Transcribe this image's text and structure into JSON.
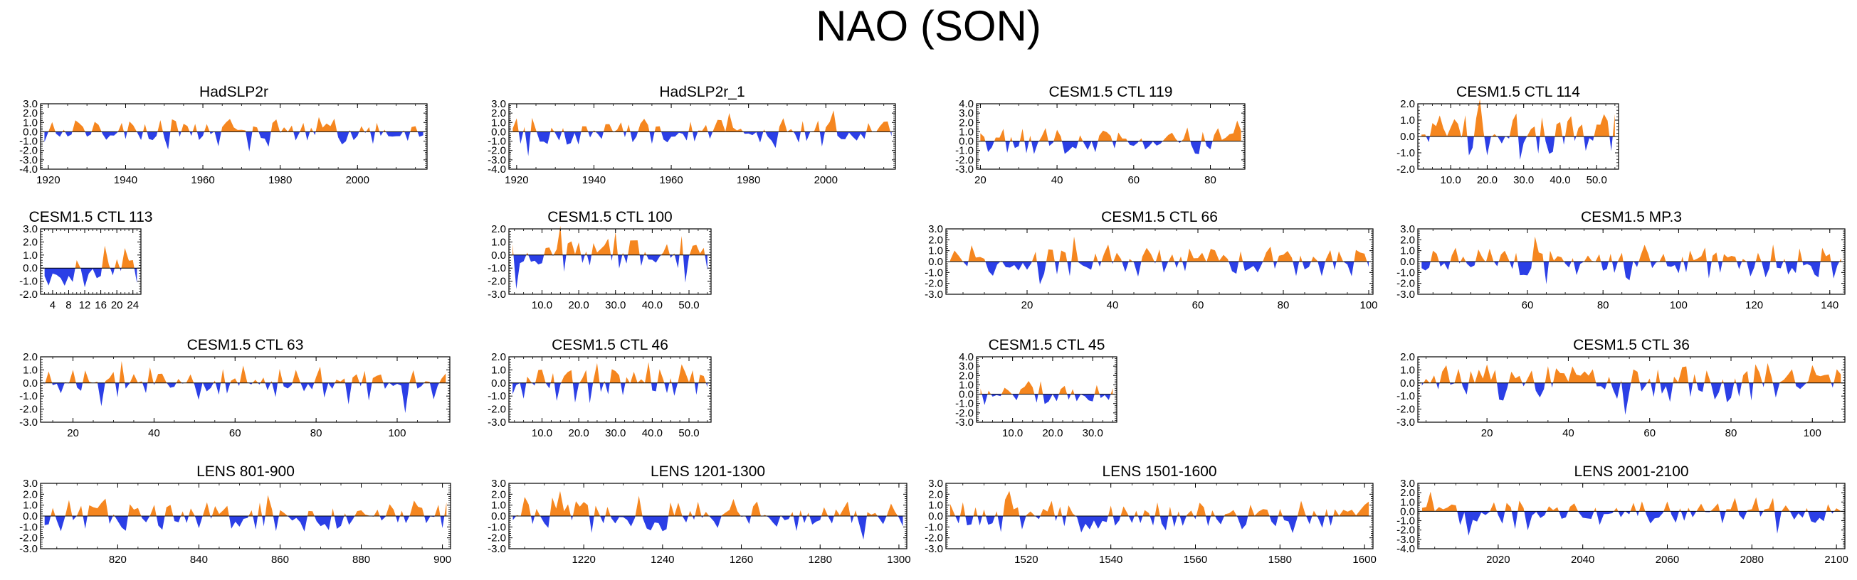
{
  "figure": {
    "title": "NAO (SON)"
  },
  "colors": {
    "positive": "#f5861f",
    "negative": "#2b3fe6",
    "frame": "#000000"
  },
  "chart_data": [
    {
      "type": "area",
      "title": "HadSLP2r",
      "xlim": [
        1918,
        2018
      ],
      "ylim": [
        -4,
        3
      ],
      "xticks": [
        1920,
        1940,
        1960,
        1980,
        2000
      ],
      "xticklabels": [
        "1920",
        "1940",
        "1960",
        "1980",
        "2000"
      ],
      "yticks": [
        -4,
        -3,
        -2,
        -1,
        0,
        1,
        2,
        3
      ],
      "yticklabels": [
        "-4.0",
        "-3.0",
        "-2.0",
        "-1.0",
        "0.0",
        "1.0",
        "2.0",
        "3.0"
      ],
      "seed": 11
    },
    {
      "type": "area",
      "title": "HadSLP2r_1",
      "xlim": [
        1918,
        2018
      ],
      "ylim": [
        -4,
        3
      ],
      "xticks": [
        1920,
        1940,
        1960,
        1980,
        2000
      ],
      "xticklabels": [
        "1920",
        "1940",
        "1960",
        "1980",
        "2000"
      ],
      "yticks": [
        -4,
        -3,
        -2,
        -1,
        0,
        1,
        2,
        3
      ],
      "yticklabels": [
        "-4.0",
        "-3.0",
        "-2.0",
        "-1.0",
        "0.0",
        "1.0",
        "2.0",
        "3.0"
      ],
      "seed": 12
    },
    {
      "type": "area",
      "title": "CESM1.5 CTL 119",
      "xlim": [
        19,
        89
      ],
      "ylim": [
        -3,
        4
      ],
      "xticks": [
        20,
        40,
        60,
        80
      ],
      "xticklabels": [
        "20",
        "40",
        "60",
        "80"
      ],
      "yticks": [
        -3,
        -2,
        -1,
        0,
        1,
        2,
        3,
        4
      ],
      "yticklabels": [
        "-3.0",
        "-2.0",
        "-1.0",
        "0.0",
        "1.0",
        "2.0",
        "3.0",
        "4.0"
      ],
      "seed": 13
    },
    {
      "type": "area",
      "title": "CESM1.5 CTL 114",
      "xlim": [
        1,
        56
      ],
      "ylim": [
        -2,
        2
      ],
      "xticks": [
        10,
        20,
        30,
        40,
        50
      ],
      "xticklabels": [
        "10.0",
        "20.0",
        "30.0",
        "40.0",
        "50.0"
      ],
      "yticks": [
        -2,
        -1,
        0,
        1,
        2
      ],
      "yticklabels": [
        "-2.0",
        "-1.0",
        "0.0",
        "1.0",
        "2.0"
      ],
      "seed": 14
    },
    {
      "type": "area",
      "title": "CESM1.5 CTL 113",
      "xlim": [
        1,
        26
      ],
      "ylim": [
        -2,
        3
      ],
      "xticks": [
        4,
        8,
        12,
        16,
        20,
        24
      ],
      "xticklabels": [
        "4",
        "8",
        "12",
        "16",
        "20",
        "24"
      ],
      "yticks": [
        -2,
        -1,
        0,
        1,
        2,
        3
      ],
      "yticklabels": [
        "-2.0",
        "-1.0",
        "0.0",
        "1.0",
        "2.0",
        "3.0"
      ],
      "seed": 15
    },
    {
      "type": "area",
      "title": "CESM1.5 CTL 100",
      "xlim": [
        1,
        56
      ],
      "ylim": [
        -3,
        2
      ],
      "xticks": [
        10,
        20,
        30,
        40,
        50
      ],
      "xticklabels": [
        "10.0",
        "20.0",
        "30.0",
        "40.0",
        "50.0"
      ],
      "yticks": [
        -3,
        -2,
        -1,
        0,
        1,
        2
      ],
      "yticklabels": [
        "-3.0",
        "-2.0",
        "-1.0",
        "0.0",
        "1.0",
        "2.0"
      ],
      "seed": 16
    },
    {
      "type": "area",
      "title": "CESM1.5 CTL 66",
      "xlim": [
        1,
        101
      ],
      "ylim": [
        -3,
        3
      ],
      "xticks": [
        20,
        40,
        60,
        80,
        100
      ],
      "xticklabels": [
        "20",
        "40",
        "60",
        "80",
        "100"
      ],
      "yticks": [
        -3,
        -2,
        -1,
        0,
        1,
        2,
        3
      ],
      "yticklabels": [
        "-3.0",
        "-2.0",
        "-1.0",
        "0.0",
        "1.0",
        "2.0",
        "3.0"
      ],
      "seed": 17
    },
    {
      "type": "area",
      "title": "CESM1.5 MP.3",
      "xlim": [
        31,
        144
      ],
      "ylim": [
        -3,
        3
      ],
      "xticks": [
        60,
        80,
        100,
        120,
        140
      ],
      "xticklabels": [
        "60",
        "80",
        "100",
        "120",
        "140"
      ],
      "yticks": [
        -3,
        -2,
        -1,
        0,
        1,
        2,
        3
      ],
      "yticklabels": [
        "-3.0",
        "-2.0",
        "-1.0",
        "0.0",
        "1.0",
        "2.0",
        "3.0"
      ],
      "seed": 18
    },
    {
      "type": "area",
      "title": "CESM1.5 CTL 63",
      "xlim": [
        12,
        113
      ],
      "ylim": [
        -3,
        2
      ],
      "xticks": [
        20,
        40,
        60,
        80,
        100
      ],
      "xticklabels": [
        "20",
        "40",
        "60",
        "80",
        "100"
      ],
      "yticks": [
        -3,
        -2,
        -1,
        0,
        1,
        2
      ],
      "yticklabels": [
        "-3.0",
        "-2.0",
        "-1.0",
        "0.0",
        "1.0",
        "2.0"
      ],
      "seed": 19
    },
    {
      "type": "area",
      "title": "CESM1.5 CTL 46",
      "xlim": [
        1,
        56
      ],
      "ylim": [
        -3,
        2
      ],
      "xticks": [
        10,
        20,
        30,
        40,
        50
      ],
      "xticklabels": [
        "10.0",
        "20.0",
        "30.0",
        "40.0",
        "50.0"
      ],
      "yticks": [
        -3,
        -2,
        -1,
        0,
        1,
        2
      ],
      "yticklabels": [
        "-3.0",
        "-2.0",
        "-1.0",
        "0.0",
        "1.0",
        "2.0"
      ],
      "seed": 20
    },
    {
      "type": "area",
      "title": "CESM1.5 CTL 45",
      "xlim": [
        1,
        36
      ],
      "ylim": [
        -3,
        4
      ],
      "xticks": [
        10,
        20,
        30
      ],
      "xticklabels": [
        "10.0",
        "20.0",
        "30.0"
      ],
      "yticks": [
        -3,
        -2,
        -1,
        0,
        1,
        2,
        3,
        4
      ],
      "yticklabels": [
        "-3.0",
        "-2.0",
        "-1.0",
        "0.0",
        "1.0",
        "2.0",
        "3.0",
        "4.0"
      ],
      "seed": 21
    },
    {
      "type": "area",
      "title": "CESM1.5 CTL 36",
      "xlim": [
        3,
        108
      ],
      "ylim": [
        -3,
        2
      ],
      "xticks": [
        20,
        40,
        60,
        80,
        100
      ],
      "xticklabels": [
        "20",
        "40",
        "60",
        "80",
        "100"
      ],
      "yticks": [
        -3,
        -2,
        -1,
        0,
        1,
        2
      ],
      "yticklabels": [
        "-3.0",
        "-2.0",
        "-1.0",
        "0.0",
        "1.0",
        "2.0"
      ],
      "seed": 22
    },
    {
      "type": "area",
      "title": "LENS 801-900",
      "xlim": [
        801,
        902
      ],
      "ylim": [
        -3,
        3
      ],
      "xticks": [
        820,
        840,
        860,
        880,
        900
      ],
      "xticklabels": [
        "820",
        "840",
        "860",
        "880",
        "900"
      ],
      "yticks": [
        -3,
        -2,
        -1,
        0,
        1,
        2,
        3
      ],
      "yticklabels": [
        "-3.0",
        "-2.0",
        "-1.0",
        "0.0",
        "1.0",
        "2.0",
        "3.0"
      ],
      "seed": 23
    },
    {
      "type": "area",
      "title": "LENS 1201-1300",
      "xlim": [
        1201,
        1302
      ],
      "ylim": [
        -3,
        3
      ],
      "xticks": [
        1220,
        1240,
        1260,
        1280,
        1300
      ],
      "xticklabels": [
        "1220",
        "1240",
        "1260",
        "1280",
        "1300"
      ],
      "yticks": [
        -3,
        -2,
        -1,
        0,
        1,
        2,
        3
      ],
      "yticklabels": [
        "-3.0",
        "-2.0",
        "-1.0",
        "0.0",
        "1.0",
        "2.0",
        "3.0"
      ],
      "seed": 24
    },
    {
      "type": "area",
      "title": "LENS 1501-1600",
      "xlim": [
        1501,
        1602
      ],
      "ylim": [
        -3,
        3
      ],
      "xticks": [
        1520,
        1540,
        1560,
        1580,
        1600
      ],
      "xticklabels": [
        "1520",
        "1540",
        "1560",
        "1580",
        "1600"
      ],
      "yticks": [
        -3,
        -2,
        -1,
        0,
        1,
        2,
        3
      ],
      "yticklabels": [
        "-3.0",
        "-2.0",
        "-1.0",
        "0.0",
        "1.0",
        "2.0",
        "3.0"
      ],
      "seed": 25
    },
    {
      "type": "area",
      "title": "LENS 2001-2100",
      "xlim": [
        2001,
        2102
      ],
      "ylim": [
        -4,
        3
      ],
      "xticks": [
        2020,
        2040,
        2060,
        2080,
        2100
      ],
      "xticklabels": [
        "2020",
        "2040",
        "2060",
        "2080",
        "2100"
      ],
      "yticks": [
        -4,
        -3,
        -2,
        -1,
        0,
        1,
        2,
        3
      ],
      "yticklabels": [
        "-4.0",
        "-3.0",
        "-2.0",
        "-1.0",
        "0.0",
        "1.0",
        "2.0",
        "3.0"
      ],
      "seed": 26
    }
  ]
}
